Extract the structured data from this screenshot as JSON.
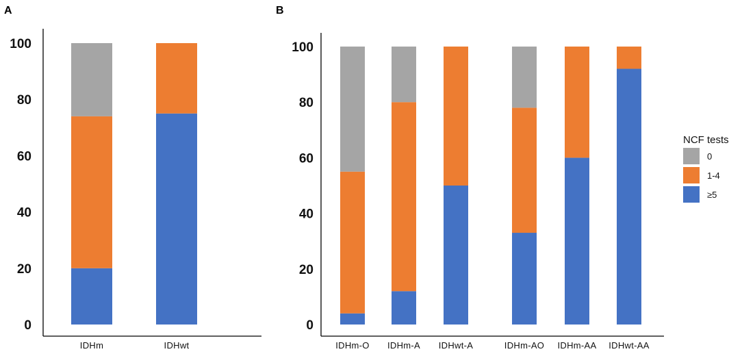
{
  "figure": {
    "legend": {
      "title": "NCF tests",
      "entries": [
        {
          "label": "0",
          "color": "#a5a5a5"
        },
        {
          "label": "1-4",
          "color": "#ed7d31"
        },
        {
          "label": "≥5",
          "color": "#4472c4"
        }
      ]
    }
  },
  "chart_data": [
    {
      "panel": "A",
      "type": "bar",
      "stacked": true,
      "categories": [
        "IDHm",
        "IDHwt"
      ],
      "series": [
        {
          "name": "≥5",
          "color": "#4472c4",
          "values": [
            20,
            75
          ]
        },
        {
          "name": "1-4",
          "color": "#ed7d31",
          "values": [
            54,
            25
          ]
        },
        {
          "name": "0",
          "color": "#a5a5a5",
          "values": [
            26,
            0
          ]
        }
      ],
      "ylim": [
        0,
        100
      ],
      "yticks": [
        0,
        20,
        40,
        60,
        80,
        100
      ],
      "ytick_labels": [
        "0",
        "20",
        "40",
        "60",
        "80",
        "100"
      ],
      "title": "",
      "xlabel": "",
      "ylabel": ""
    },
    {
      "panel": "B",
      "type": "bar",
      "stacked": true,
      "categories": [
        "IDHm-O",
        "IDHm-A",
        "IDHwt-A",
        "IDHm-AO",
        "IDHm-AA",
        "IDHwt-AA"
      ],
      "series": [
        {
          "name": "≥5",
          "color": "#4472c4",
          "values": [
            4,
            12,
            50,
            33,
            60,
            92
          ]
        },
        {
          "name": "1-4",
          "color": "#ed7d31",
          "values": [
            51,
            68,
            50,
            45,
            40,
            8
          ]
        },
        {
          "name": "0",
          "color": "#a5a5a5",
          "values": [
            45,
            20,
            0,
            22,
            0,
            0
          ]
        }
      ],
      "ylim": [
        0,
        100
      ],
      "yticks": [
        0,
        20,
        40,
        60,
        80,
        100
      ],
      "ytick_labels": [
        "0",
        "20",
        "40",
        "60",
        "80",
        "100"
      ],
      "title": "",
      "xlabel": "",
      "ylabel": ""
    }
  ]
}
